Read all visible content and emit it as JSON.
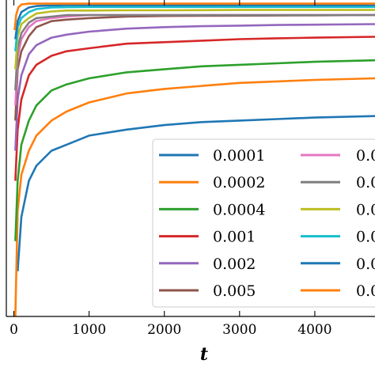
{
  "chart_data": {
    "type": "line",
    "xlabel": "t",
    "ylabel": "",
    "title": "",
    "xlim": [
      -100,
      4800
    ],
    "ylim": [
      0,
      1.05
    ],
    "xticks": [
      0,
      1000,
      2000,
      3000,
      4000
    ],
    "xtick_labels": [
      "0",
      "1000",
      "2000",
      "3000",
      "4000"
    ],
    "grid": false,
    "legend": {
      "placement": "lower-right",
      "ncol": 2,
      "labels": [
        "0.0001",
        "0.0002",
        "0.0004",
        "0.001",
        "0.002",
        "0.005",
        "0.0",
        "0.0",
        "0.0",
        "0.0",
        "0.0",
        "0.0"
      ]
    },
    "series": [
      {
        "name": "0.0001",
        "color": "#1f77b4",
        "x": [
          50,
          100,
          200,
          300,
          500,
          700,
          1000,
          1500,
          2000,
          2500,
          3000,
          3500,
          4000,
          4800
        ],
        "y": [
          0.15,
          0.33,
          0.45,
          0.5,
          0.55,
          0.57,
          0.6,
          0.62,
          0.635,
          0.645,
          0.65,
          0.655,
          0.66,
          0.665
        ]
      },
      {
        "name": "0.0002",
        "color": "#ff7f0e",
        "x": [
          20,
          50,
          100,
          200,
          300,
          500,
          700,
          1000,
          1500,
          2000,
          2500,
          3000,
          3500,
          4000,
          4800
        ],
        "y": [
          0.0,
          0.35,
          0.47,
          0.55,
          0.6,
          0.65,
          0.68,
          0.71,
          0.74,
          0.755,
          0.765,
          0.775,
          0.78,
          0.785,
          0.79
        ]
      },
      {
        "name": "0.0004",
        "color": "#2ca02c",
        "x": [
          20,
          50,
          100,
          200,
          300,
          500,
          700,
          1000,
          1500,
          2000,
          2500,
          3000,
          3500,
          4000,
          4800
        ],
        "y": [
          0.25,
          0.45,
          0.57,
          0.65,
          0.7,
          0.75,
          0.77,
          0.79,
          0.81,
          0.82,
          0.83,
          0.835,
          0.84,
          0.845,
          0.85
        ]
      },
      {
        "name": "0.001",
        "color": "#d62728",
        "x": [
          20,
          50,
          100,
          200,
          300,
          500,
          700,
          1000,
          1500,
          2000,
          2500,
          3000,
          3500,
          4000,
          4800
        ],
        "y": [
          0.45,
          0.62,
          0.72,
          0.8,
          0.835,
          0.865,
          0.88,
          0.89,
          0.905,
          0.91,
          0.915,
          0.92,
          0.923,
          0.925,
          0.928
        ]
      },
      {
        "name": "0.002",
        "color": "#9467bd",
        "x": [
          20,
          50,
          100,
          200,
          300,
          500,
          700,
          1000,
          1500,
          2000,
          2500,
          3000,
          3500,
          4000,
          4800
        ],
        "y": [
          0.55,
          0.72,
          0.8,
          0.87,
          0.9,
          0.925,
          0.935,
          0.945,
          0.955,
          0.96,
          0.963,
          0.965,
          0.967,
          0.968,
          0.97
        ]
      },
      {
        "name": "0.005",
        "color": "#8c564b",
        "x": [
          20,
          50,
          100,
          200,
          300,
          500,
          700,
          1000,
          1500,
          2000,
          3000,
          4000,
          4800
        ],
        "y": [
          0.65,
          0.82,
          0.88,
          0.93,
          0.96,
          0.98,
          0.985,
          0.99,
          0.995,
          0.997,
          0.998,
          0.999,
          1.0
        ]
      },
      {
        "name": "0.0",
        "color": "#e377c2",
        "x": [
          20,
          50,
          100,
          200,
          300,
          500,
          700,
          1000,
          1500,
          2000,
          3000,
          4000,
          4800
        ],
        "y": [
          0.7,
          0.86,
          0.92,
          0.96,
          0.98,
          0.99,
          0.995,
          1.0,
          1.0,
          1.0,
          1.0,
          1.0,
          1.0
        ]
      },
      {
        "name": "0.0",
        "color": "#7f7f7f",
        "x": [
          20,
          50,
          100,
          200,
          300,
          500,
          700,
          1000,
          1500,
          2000,
          3000,
          4000,
          4800
        ],
        "y": [
          0.75,
          0.89,
          0.94,
          0.975,
          0.99,
          0.995,
          1.0,
          1.0,
          1.0,
          1.0,
          1.0,
          1.0,
          1.0
        ]
      },
      {
        "name": "0.0",
        "color": "#bcbd22",
        "x": [
          20,
          50,
          100,
          200,
          300,
          500,
          700,
          1000,
          1500,
          2000,
          3000,
          4000,
          4800
        ],
        "y": [
          0.82,
          0.93,
          0.97,
          0.99,
          1.005,
          1.012,
          1.015,
          1.015,
          1.016,
          1.016,
          1.017,
          1.017,
          1.017
        ]
      },
      {
        "name": "0.0",
        "color": "#17becf",
        "x": [
          20,
          50,
          100,
          200,
          300,
          500,
          700,
          1000,
          1500,
          2000,
          3000,
          4000,
          4800
        ],
        "y": [
          0.88,
          0.96,
          0.99,
          1.01,
          1.02,
          1.025,
          1.026,
          1.027,
          1.027,
          1.027,
          1.027,
          1.027,
          1.027
        ]
      },
      {
        "name": "0.0",
        "color": "#1f77b4",
        "x": [
          20,
          50,
          100,
          200,
          300,
          500,
          700,
          1000,
          1500,
          2000,
          3000,
          4000,
          4800
        ],
        "y": [
          0.92,
          0.98,
          1.01,
          1.025,
          1.03,
          1.032,
          1.033,
          1.033,
          1.033,
          1.033,
          1.033,
          1.033,
          1.033
        ]
      },
      {
        "name": "0.0",
        "color": "#ff7f0e",
        "x": [
          10,
          30,
          60,
          100,
          200,
          300,
          500,
          1000,
          2000,
          3000,
          4000,
          4800
        ],
        "y": [
          0.95,
          1.0,
          1.025,
          1.035,
          1.038,
          1.038,
          1.038,
          1.038,
          1.038,
          1.038,
          1.038,
          1.038
        ]
      }
    ]
  }
}
